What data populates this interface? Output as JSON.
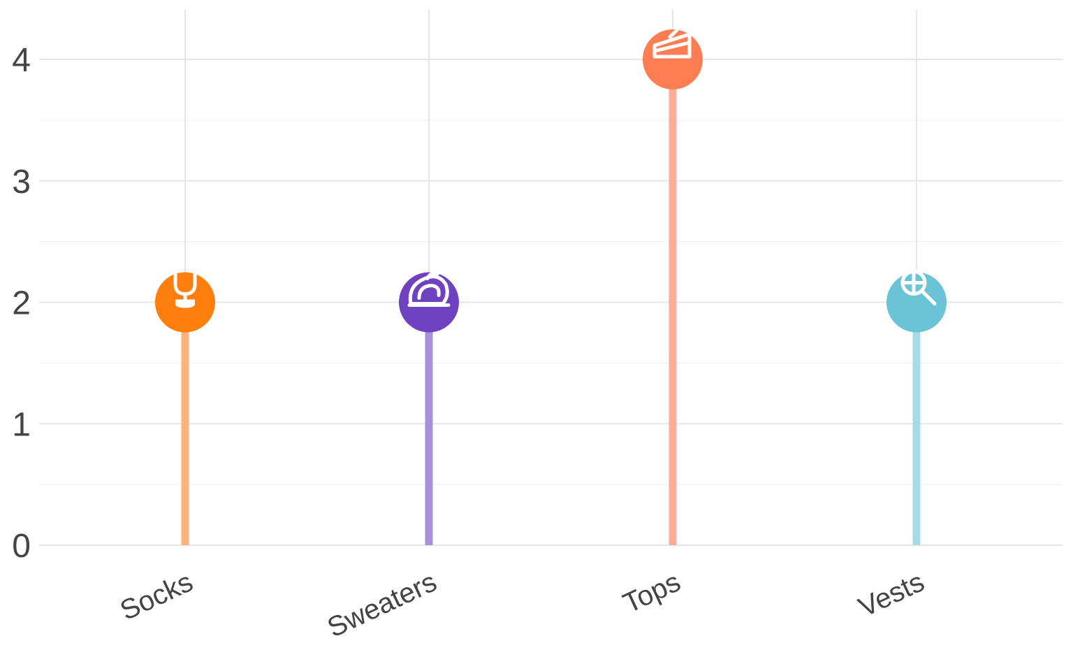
{
  "chart_data": {
    "type": "lollipop",
    "categories": [
      "Socks",
      "Sweaters",
      "Tops",
      "Vests"
    ],
    "values": [
      2,
      2,
      4,
      2
    ],
    "colors": [
      "#ff7f0e",
      "#6f42c1",
      "#ff7d52",
      "#6bc4d6"
    ],
    "stem_colors": [
      "#ffb27a",
      "#a990da",
      "#f9ae99",
      "#a7dbe5"
    ],
    "icons": [
      "tulip-icon",
      "rose-icon",
      "cake-icon",
      "lollipop-icon"
    ],
    "yticks": [
      0,
      1,
      2,
      3,
      4
    ],
    "ylim": [
      0,
      4.4
    ],
    "grid": true,
    "legend": "none",
    "title": "",
    "xlabel": "",
    "ylabel": ""
  }
}
